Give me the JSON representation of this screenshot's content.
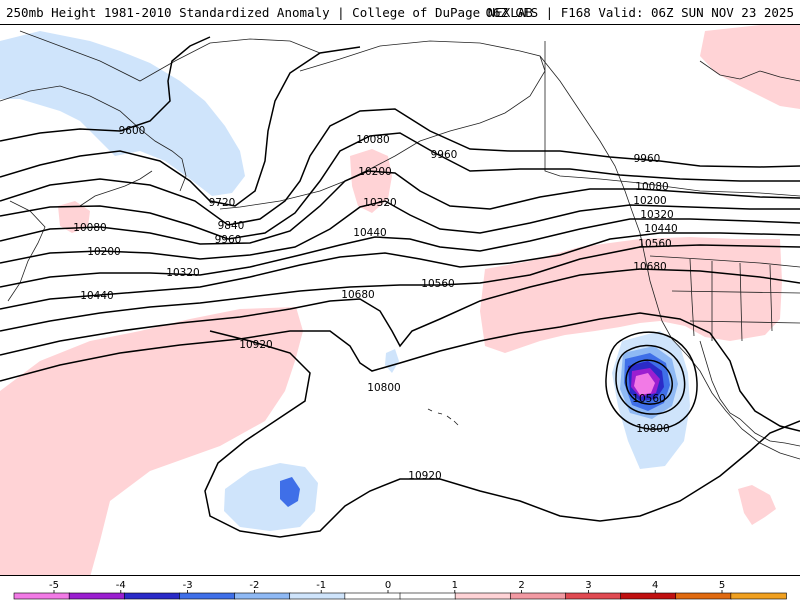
{
  "header": {
    "title_left": "250mb Height 1981-2010 Standardized Anomaly | College of DuPage NEXLAB",
    "title_right": "06Z GFS | F168 Valid: 06Z SUN NOV 23 2025"
  },
  "colors": {
    "anom_pos_1": "#ffd3d6",
    "anom_neg_1": "#cfe4fb",
    "anom_neg_2": "#8fb9f4",
    "anom_neg_3": "#3f6fe8",
    "anom_neg_4": "#2b2bc8",
    "anom_neg_5": "#9b1fd0",
    "anom_neg_6": "#f27ae6",
    "contour": "#000000",
    "coast": "#222222"
  },
  "contour_labels": [
    {
      "id": "9600-w",
      "text": "9600"
    },
    {
      "id": "9720",
      "text": "9720"
    },
    {
      "id": "9840",
      "text": "9840"
    },
    {
      "id": "9960-w",
      "text": "9960"
    },
    {
      "id": "10080-w",
      "text": "10080"
    },
    {
      "id": "10200-w",
      "text": "10200"
    },
    {
      "id": "10320-w",
      "text": "10320"
    },
    {
      "id": "10440-w",
      "text": "10440"
    },
    {
      "id": "10080-c",
      "text": "10080"
    },
    {
      "id": "10200-c",
      "text": "10200"
    },
    {
      "id": "10320-c",
      "text": "10320"
    },
    {
      "id": "10440-c",
      "text": "10440"
    },
    {
      "id": "10560-c",
      "text": "10560"
    },
    {
      "id": "10680-c",
      "text": "10680"
    },
    {
      "id": "9960-c",
      "text": "9960"
    },
    {
      "id": "10920-w",
      "text": "10920"
    },
    {
      "id": "10800-c",
      "text": "10800"
    },
    {
      "id": "10920-s",
      "text": "10920"
    },
    {
      "id": "9960-e",
      "text": "9960"
    },
    {
      "id": "10080-e",
      "text": "10080"
    },
    {
      "id": "10200-e",
      "text": "10200"
    },
    {
      "id": "10320-e",
      "text": "10320"
    },
    {
      "id": "10440-e",
      "text": "10440"
    },
    {
      "id": "10560-e",
      "text": "10560"
    },
    {
      "id": "10680-e",
      "text": "10680"
    },
    {
      "id": "10560-low",
      "text": "10560"
    },
    {
      "id": "10800-low",
      "text": "10800"
    }
  ],
  "colorbar": {
    "ticks": [
      "-5",
      "-4",
      "-3",
      "-2",
      "-1",
      "0",
      "1",
      "2",
      "3",
      "4",
      "5"
    ],
    "bin_colors": [
      "#f27ae6",
      "#9b1fd0",
      "#2b2bc8",
      "#3f6fe8",
      "#8fb9f4",
      "#cfe4fb",
      "#ffffff",
      "#ffffff",
      "#ffd3d6",
      "#f29aa3",
      "#e04a52",
      "#c01010",
      "#e06a10",
      "#f0a020"
    ]
  }
}
